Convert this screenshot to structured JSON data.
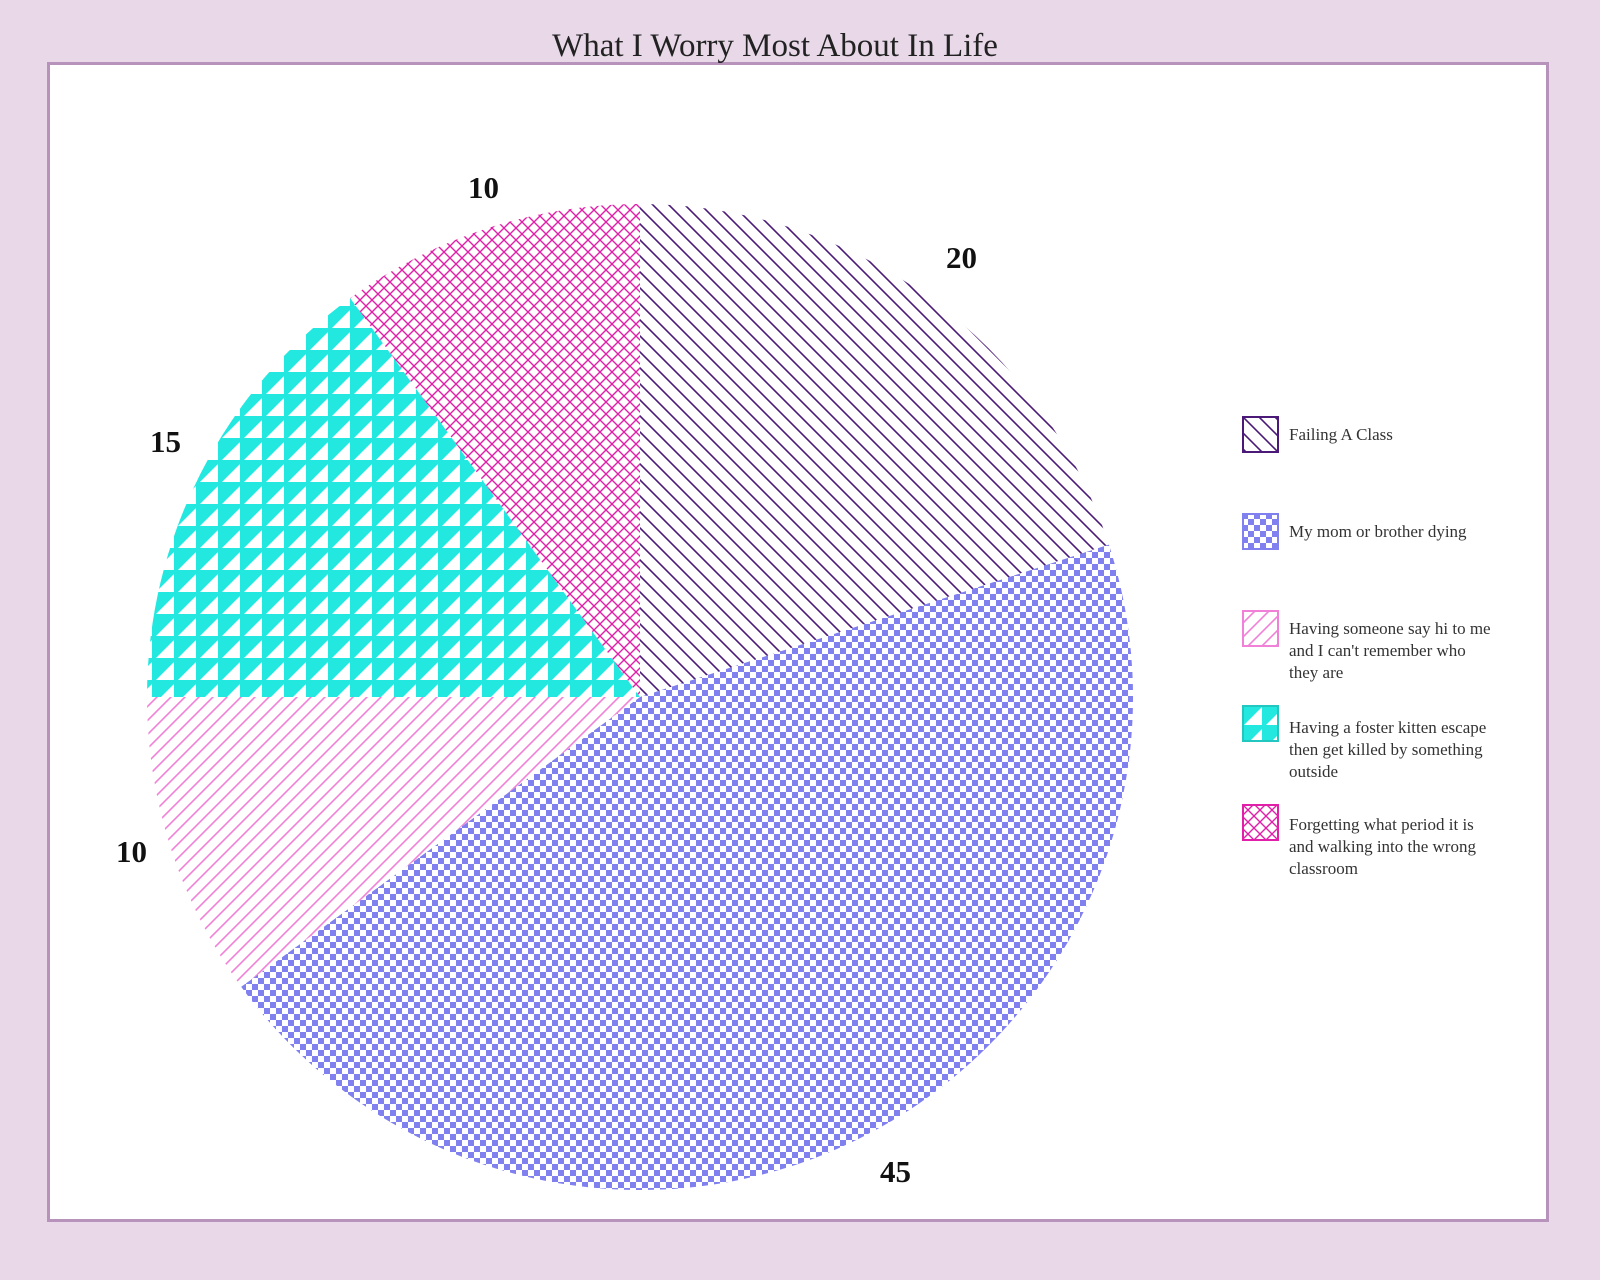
{
  "chart_data": {
    "type": "pie",
    "title": "What I Worry Most About In Life",
    "categories": [
      "Failing A Class",
      "My mom or brother dying",
      "Having someone say hi to me and I can't remember who they are",
      "Having a foster kitten escape then get killed by something outside",
      "Forgetting what period it is and walking into the wrong classroom"
    ],
    "values": [
      20,
      45,
      10,
      15,
      10
    ],
    "value_labels": [
      "20",
      "45",
      "10",
      "15",
      "10"
    ],
    "legend_position": "right",
    "colors": [
      "#4b1a78",
      "#8080ee",
      "#f080d8",
      "#22e8e0",
      "#e020a8"
    ],
    "patterns": [
      "diagonal-hatch",
      "checker",
      "diagonal-hatch-light",
      "triangles",
      "cross-hatch"
    ]
  }
}
